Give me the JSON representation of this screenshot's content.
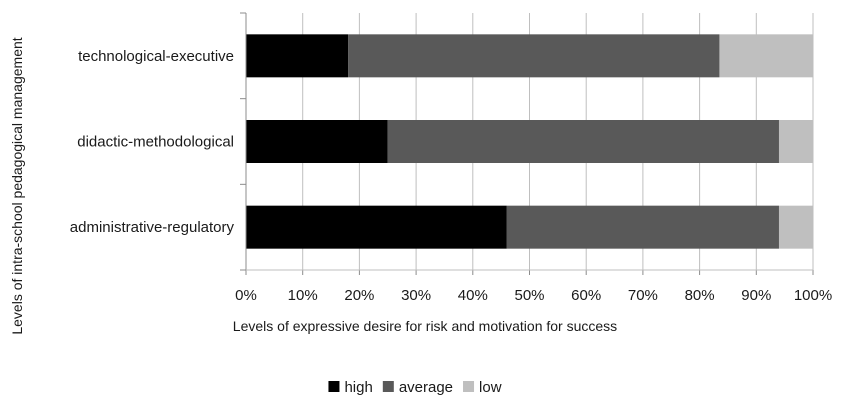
{
  "chart_data": {
    "type": "bar",
    "orientation": "horizontal",
    "stacked": true,
    "percent_stacked": true,
    "categories": [
      "technological-executive",
      "didactic-methodological",
      "administrative-regulatory"
    ],
    "series": [
      {
        "name": "high",
        "color": "#000000",
        "values": [
          18,
          25,
          46
        ]
      },
      {
        "name": "average",
        "color": "#595959",
        "values": [
          65.5,
          69,
          48
        ]
      },
      {
        "name": "low",
        "color": "#bfbfbf",
        "values": [
          16.5,
          6,
          6
        ]
      }
    ],
    "xlabel": "Levels of expressive desire for risk and motivation for success",
    "ylabel": "Levels of intra-school pedagogical management",
    "xlim": [
      0,
      100
    ],
    "x_ticks": [
      "0%",
      "10%",
      "20%",
      "30%",
      "40%",
      "50%",
      "60%",
      "70%",
      "80%",
      "90%",
      "100%"
    ],
    "grid": "vertical",
    "legend_position": "bottom"
  }
}
